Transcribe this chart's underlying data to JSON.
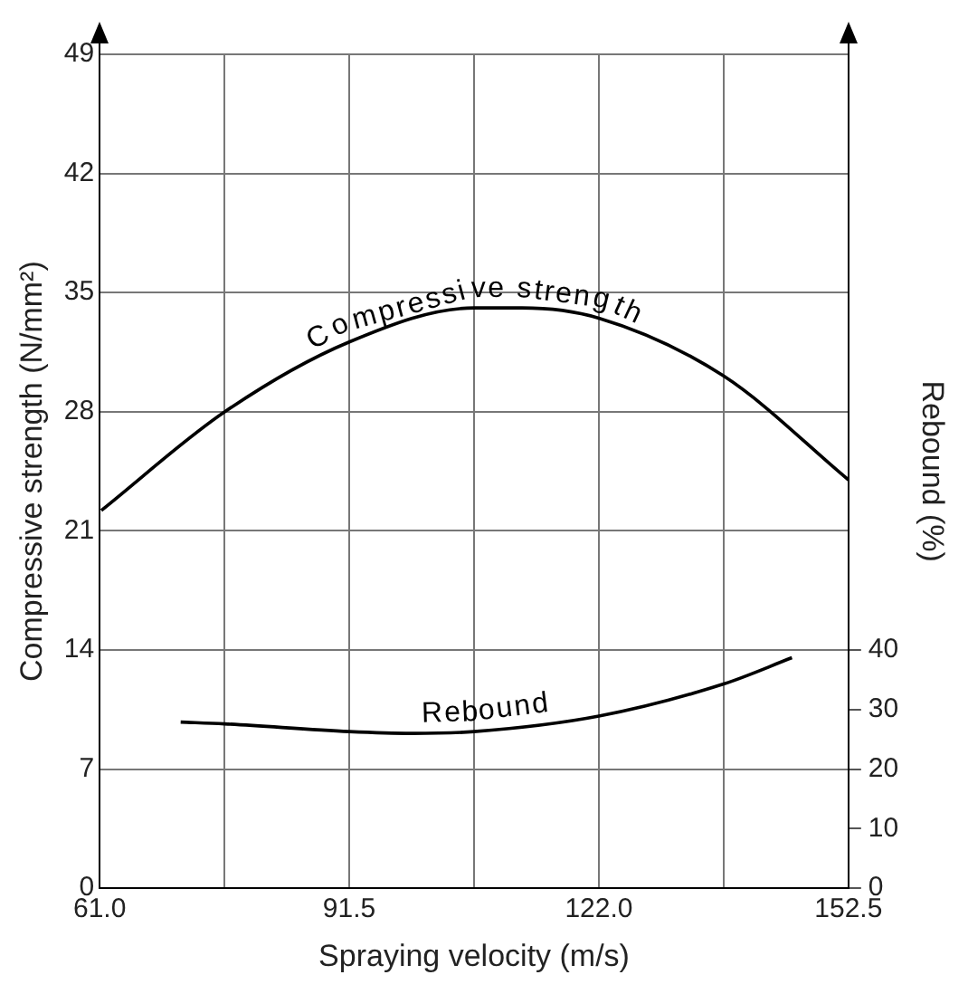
{
  "chart_data": {
    "type": "line",
    "xlabel": "Spraying velocity (m/s)",
    "ylabel": "Compressive strength (N/mm²)",
    "y2label": "Rebound (%)",
    "xlim": [
      61,
      152.5
    ],
    "xticks": [
      {
        "value": 61,
        "label": "61.0"
      },
      {
        "value": 76.25,
        "label": null
      },
      {
        "value": 91.5,
        "label": "91.5"
      },
      {
        "value": 106.75,
        "label": null
      },
      {
        "value": 122,
        "label": "122.0"
      },
      {
        "value": 137.25,
        "label": null
      },
      {
        "value": 152.5,
        "label": "152.5"
      }
    ],
    "ylim": [
      0,
      49
    ],
    "yticks": [
      0,
      7,
      14,
      21,
      28,
      35,
      42,
      49
    ],
    "y2lim": [
      0,
      140
    ],
    "y2ticks": [
      0,
      10,
      20,
      30,
      40
    ],
    "grid": true,
    "legend": false,
    "marker": "none",
    "line_style": "solid",
    "series": [
      {
        "name": "Compressive strength",
        "color": "#000000",
        "x": [
          61.2,
          76.3,
          91.5,
          106.75,
          112.6,
          122,
          137.25,
          152.5
        ],
        "values": [
          22.2,
          28.0,
          32.1,
          34.1,
          34.1,
          33.5,
          30.1,
          24.0
        ]
      },
      {
        "name": "Rebound",
        "color": "#000000",
        "axis": "y2",
        "x": [
          70.9,
          76.25,
          91.5,
          99.1,
          106.75,
          122,
          137.25,
          145.6
        ],
        "values": [
          27.9,
          27.6,
          26.3,
          26.0,
          26.3,
          28.9,
          34.3,
          38.7
        ]
      }
    ]
  }
}
